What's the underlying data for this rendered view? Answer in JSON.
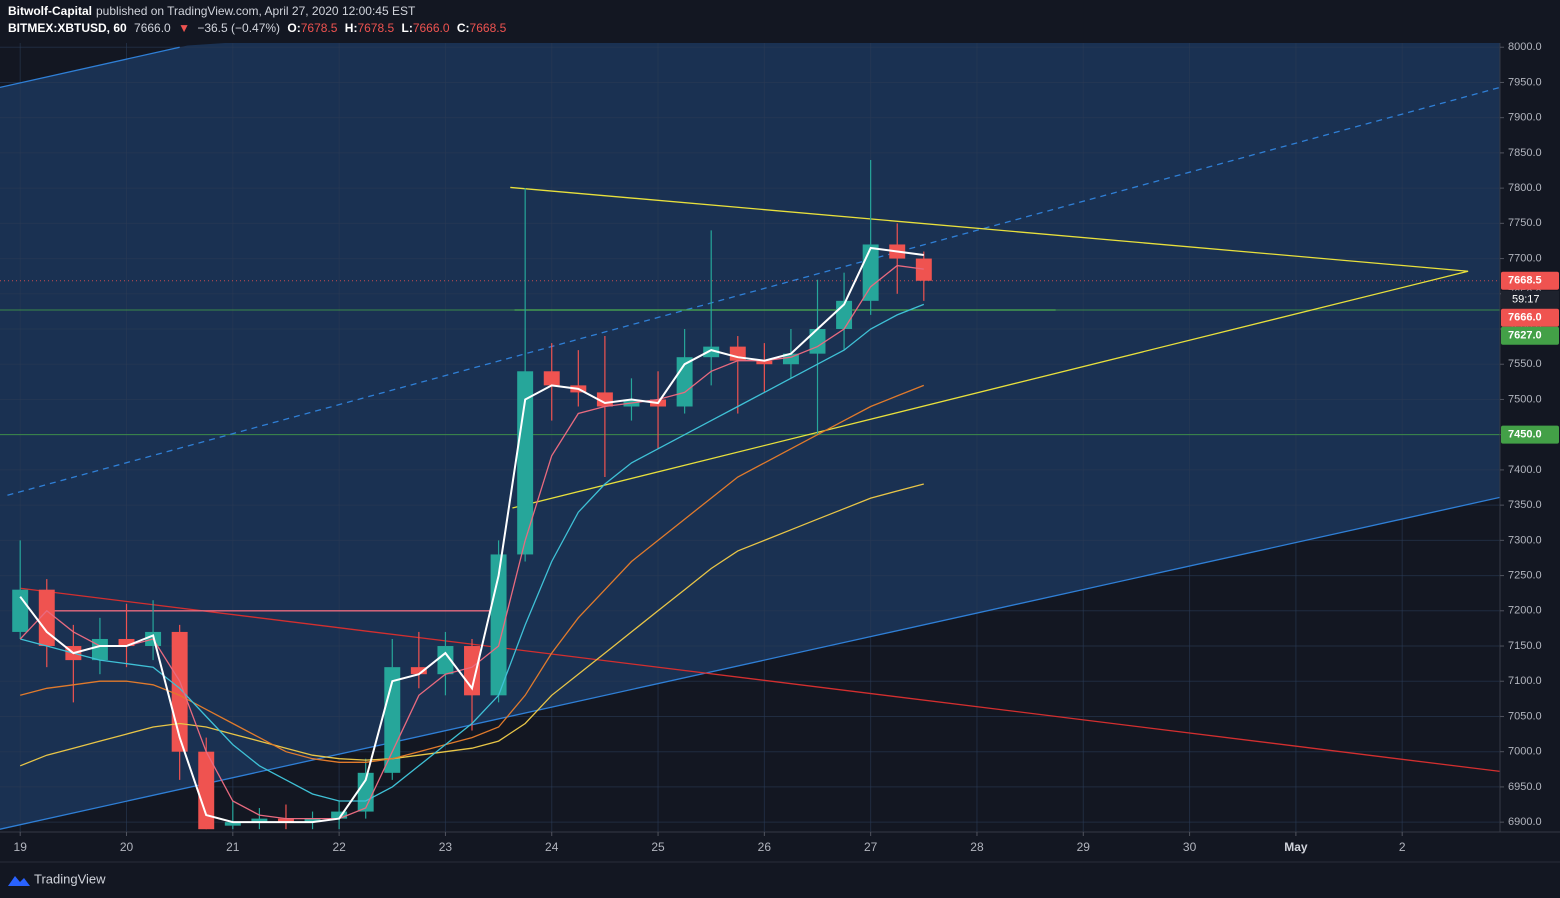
{
  "header": {
    "author": "Bitwolf-Capital",
    "published": "published on TradingView.com, April 27, 2020 12:00:45 EST",
    "symbol": "BITMEX:XBTUSD, 60",
    "last": "7666.0",
    "arrow": "▼",
    "change": "−36.5 (−0.47%)",
    "ohlc": [
      {
        "label": "O:",
        "value": "7678.5"
      },
      {
        "label": "H:",
        "value": "7678.5"
      },
      {
        "label": "L:",
        "value": "7666.0"
      },
      {
        "label": "C:",
        "value": "7668.5"
      }
    ]
  },
  "footer": {
    "logo": "TradingView"
  },
  "chart_data": {
    "type": "candlestick",
    "up_color": "#26a69a",
    "down_color": "#ef5350",
    "grid": true,
    "xlim": [
      18.81,
      32.92
    ],
    "ylim": [
      6886,
      8006
    ],
    "xticks": [
      19,
      20,
      21,
      22,
      23,
      24,
      25,
      26,
      27,
      28,
      29,
      30,
      {
        "value": 31,
        "label": "May"
      },
      {
        "value": 32,
        "label": "2"
      }
    ],
    "yticks": [
      {
        "value": 6900,
        "label": "6900.0"
      },
      {
        "value": 6950,
        "label": "6950.0"
      },
      {
        "value": 7000,
        "label": "7000.0"
      },
      {
        "value": 7050,
        "label": "7050.0"
      },
      {
        "value": 7100,
        "label": "7100.0"
      },
      {
        "value": 7150,
        "label": "7150.0"
      },
      {
        "value": 7200,
        "label": "7200.0"
      },
      {
        "value": 7250,
        "label": "7250.0"
      },
      {
        "value": 7300,
        "label": "7300.0"
      },
      {
        "value": 7350,
        "label": "7350.0"
      },
      {
        "value": 7400,
        "label": "7400.0"
      },
      {
        "value": 7450,
        "label": "7450.0"
      },
      {
        "value": 7500,
        "label": "7500.0"
      },
      {
        "value": 7550,
        "label": "7550.0"
      },
      {
        "value": 7600,
        "label": "7600.0"
      },
      {
        "value": 7650,
        "label": "7650.0"
      },
      {
        "value": 7700,
        "label": "7700.0"
      },
      {
        "value": 7750,
        "label": "7750.0"
      },
      {
        "value": 7800,
        "label": "7800.0"
      },
      {
        "value": 7850,
        "label": "7850.0"
      },
      {
        "value": 7900,
        "label": "7900.0"
      },
      {
        "value": 7950,
        "label": "7950.0"
      },
      {
        "value": 8000,
        "label": "8000.0"
      }
    ],
    "x": [
      19,
      19.25,
      19.5,
      19.75,
      20,
      20.25,
      20.5,
      20.75,
      21,
      21.25,
      21.5,
      21.75,
      22,
      22.25,
      22.5,
      22.75,
      23,
      23.25,
      23.5,
      23.75,
      24,
      24.25,
      24.5,
      24.75,
      25,
      25.25,
      25.5,
      25.75,
      26,
      26.25,
      26.5,
      26.75,
      27,
      27.25,
      27.5
    ],
    "open": [
      7170,
      7230,
      7150,
      7130,
      7160,
      7150,
      7170,
      7000,
      6895,
      6900,
      6905,
      6900,
      6905,
      6915,
      6970,
      7120,
      7110,
      7150,
      7080,
      7280,
      7540,
      7520,
      7510,
      7490,
      7500,
      7490,
      7560,
      7575,
      7555,
      7550,
      7565,
      7600,
      7640,
      7720,
      7700
    ],
    "high": [
      7300,
      7245,
      7180,
      7190,
      7210,
      7215,
      7180,
      7020,
      6930,
      6920,
      6925,
      6915,
      6930,
      6990,
      7160,
      7170,
      7170,
      7160,
      7300,
      7800,
      7580,
      7570,
      7590,
      7530,
      7540,
      7600,
      7740,
      7590,
      7580,
      7600,
      7670,
      7680,
      7840,
      7750,
      7710
    ],
    "low": [
      7160,
      7120,
      7070,
      7110,
      7120,
      7130,
      6960,
      6890,
      6890,
      6890,
      6890,
      6890,
      6890,
      6905,
      6960,
      7090,
      7080,
      7030,
      7070,
      7270,
      7470,
      7490,
      7390,
      7470,
      7430,
      7480,
      7520,
      7480,
      7510,
      7530,
      7450,
      7570,
      7620,
      7650,
      7640
    ],
    "close": [
      7230,
      7150,
      7130,
      7160,
      7150,
      7170,
      7000,
      6890,
      6900,
      6905,
      6900,
      6905,
      6915,
      6970,
      7120,
      7110,
      7150,
      7080,
      7280,
      7540,
      7520,
      7510,
      7490,
      7500,
      7490,
      7560,
      7575,
      7555,
      7550,
      7565,
      7600,
      7640,
      7720,
      7700,
      7668.5
    ],
    "series": [
      {
        "color": "#e8c547",
        "values": [
          6980,
          6995,
          7005,
          7015,
          7025,
          7035,
          7040,
          7035,
          7025,
          7015,
          7005,
          6995,
          6990,
          6988,
          6990,
          6995,
          7000,
          7005,
          7015,
          7040,
          7080,
          7110,
          7140,
          7170,
          7200,
          7230,
          7260,
          7285,
          7300,
          7315,
          7330,
          7345,
          7360,
          7370,
          7380
        ]
      },
      {
        "color": "#e07a2c",
        "values": [
          7080,
          7090,
          7095,
          7100,
          7100,
          7095,
          7080,
          7060,
          7040,
          7020,
          7000,
          6990,
          6985,
          6985,
          6990,
          7000,
          7010,
          7020,
          7035,
          7080,
          7140,
          7190,
          7230,
          7270,
          7300,
          7330,
          7360,
          7390,
          7410,
          7430,
          7450,
          7470,
          7490,
          7505,
          7520
        ]
      },
      {
        "color": "#3fc1d6",
        "values": [
          7160,
          7150,
          7140,
          7130,
          7125,
          7120,
          7090,
          7050,
          7010,
          6980,
          6960,
          6940,
          6930,
          6930,
          6950,
          6980,
          7010,
          7040,
          7080,
          7180,
          7270,
          7340,
          7380,
          7410,
          7430,
          7450,
          7470,
          7490,
          7510,
          7530,
          7550,
          7570,
          7600,
          7620,
          7635
        ]
      },
      {
        "color": "#e86a7f",
        "values": [
          7160,
          7200,
          7170,
          7150,
          7150,
          7160,
          7100,
          7000,
          6930,
          6910,
          6905,
          6905,
          6905,
          6920,
          7000,
          7080,
          7110,
          7120,
          7150,
          7300,
          7420,
          7480,
          7490,
          7495,
          7500,
          7510,
          7540,
          7555,
          7555,
          7560,
          7575,
          7600,
          7660,
          7690,
          7685
        ]
      },
      {
        "color": "#ffffff",
        "values": [
          7220,
          7170,
          7140,
          7150,
          7150,
          7165,
          7020,
          6910,
          6900,
          6900,
          6900,
          6900,
          6905,
          6960,
          7100,
          7110,
          7140,
          7090,
          7250,
          7500,
          7520,
          7515,
          7495,
          7500,
          7495,
          7550,
          7570,
          7560,
          7555,
          7565,
          7600,
          7635,
          7715,
          7710,
          7705
        ]
      }
    ],
    "drawings": [
      {
        "color": "#2f7fd6",
        "channel": true,
        "x": [
          18.81,
          20.5
        ],
        "y": [
          7943,
          8000
        ]
      },
      {
        "color": "#2f7fd6",
        "dashed": true,
        "x": [
          18.88,
          32.92
        ],
        "y": [
          7364,
          7943
        ]
      },
      {
        "color": "#2f7fd6",
        "channel": true,
        "x": [
          18.81,
          32.92
        ],
        "y": [
          6890,
          7361
        ]
      },
      {
        "color": "#d32f2f",
        "x": [
          19,
          32.92
        ],
        "y": [
          7232,
          6972
        ]
      },
      {
        "color": "#e86a7f",
        "x": [
          19.2,
          23.5
        ],
        "y": [
          7200,
          7200
        ]
      },
      {
        "color": "#e8e03c",
        "x": [
          23.61,
          32.62
        ],
        "y": [
          7801,
          7682
        ]
      },
      {
        "color": "#e8e03c",
        "x": [
          23.63,
          32.62
        ],
        "y": [
          7346,
          7682
        ]
      },
      {
        "color": "#4caf50",
        "x": [
          23.65,
          28.74
        ],
        "y": [
          7627,
          7627
        ]
      }
    ],
    "channel_color": "#1a3152",
    "countdown": "59:17",
    "price_labels": [
      {
        "value": 7668.5,
        "label": "7668.5",
        "color": "#ef5350",
        "line": "dotted"
      },
      {
        "value": 7666.0,
        "label": "7666.0",
        "color": "#ef5350"
      },
      {
        "value": 7627.0,
        "label": "7627.0",
        "color": "#43a047",
        "line": "solid"
      },
      {
        "value": 7450.0,
        "label": "7450.0",
        "color": "#43a047",
        "line": "solid"
      }
    ]
  }
}
